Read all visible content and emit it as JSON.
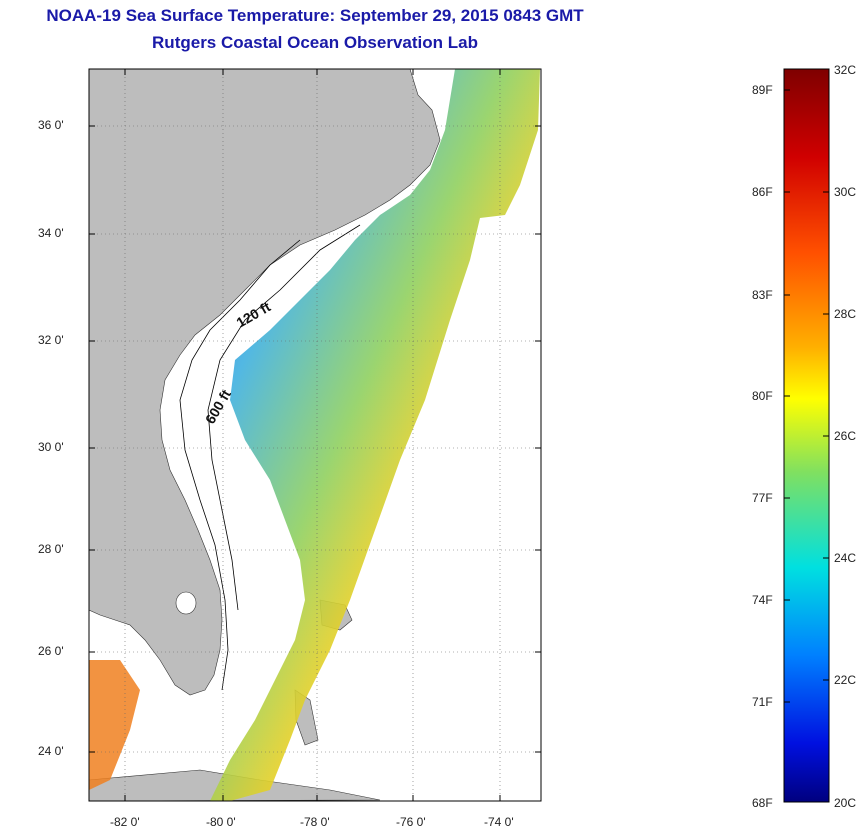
{
  "header": {
    "title": "NOAA-19 Sea Surface Temperature:  September 29, 2015 0843 GMT",
    "subtitle": "Rutgers Coastal Ocean Observation Lab"
  },
  "map": {
    "lat_ticks": [
      "36 0'",
      "34 0'",
      "32 0'",
      "30 0'",
      "28 0'",
      "26 0'",
      "24 0'"
    ],
    "lon_ticks": [
      "-82 0'",
      "-80 0'",
      "-78 0'",
      "-76 0'",
      "-74 0'"
    ],
    "isobaths": [
      {
        "label": "120 ft"
      },
      {
        "label": "600 ft"
      }
    ],
    "land_color": "#bdbdbd",
    "ocean_color": "#ffffff"
  },
  "colorbar": {
    "fahrenheit_ticks": [
      "89F",
      "86F",
      "83F",
      "80F",
      "77F",
      "74F",
      "71F",
      "68F"
    ],
    "celsius_ticks": [
      "32C",
      "30C",
      "28C",
      "26C",
      "24C",
      "22C",
      "20C"
    ],
    "min_c": 20,
    "max_c": 32,
    "colors": [
      "#7f0000",
      "#ff0000",
      "#ff8000",
      "#ffff00",
      "#80ff80",
      "#00ffff",
      "#0080ff",
      "#0000ff",
      "#00007f"
    ]
  }
}
